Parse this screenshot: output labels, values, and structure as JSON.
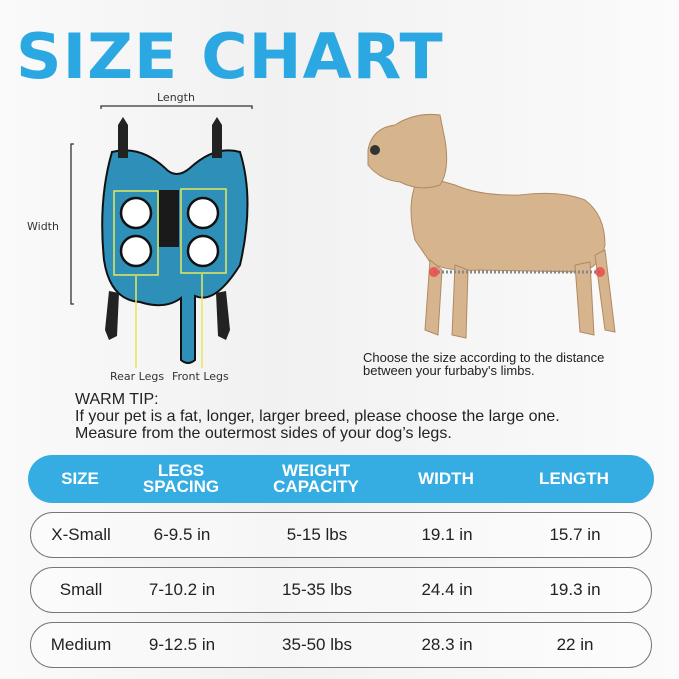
{
  "title": "SIZE CHART",
  "diagram": {
    "length_label": "Length",
    "width_label": "Width",
    "rear_legs_label": "Rear Legs",
    "front_legs_label": "Front Legs"
  },
  "caption": [
    "Choose the size according to the distance",
    "between your furbaby's limbs."
  ],
  "warm_tip": {
    "heading": "WARM TIP:",
    "lines": [
      "If your pet is a fat, longer, larger breed, please choose the large one.",
      "Measure from the outermost sides of your dog’s legs."
    ]
  },
  "colors": {
    "accent": "#2ba8e2",
    "header": "#35ace2",
    "harness": "#2e8fb8",
    "highlight": "#e3e85a",
    "marker": "#e8474a"
  },
  "table": {
    "headers": [
      [
        "SIZE"
      ],
      [
        "LEGS",
        "SPACING"
      ],
      [
        "WEIGHT",
        "CAPACITY"
      ],
      [
        "WIDTH"
      ],
      [
        "LENGTH"
      ]
    ],
    "rows": [
      [
        "X-Small",
        "6-9.5 in",
        "5-15 lbs",
        "19.1 in",
        "15.7 in"
      ],
      [
        "Small",
        "7-10.2 in",
        "15-35 lbs",
        "24.4 in",
        "19.3 in"
      ],
      [
        "Medium",
        "9-12.5 in",
        "35-50 lbs",
        "28.3 in",
        "22 in"
      ]
    ]
  }
}
